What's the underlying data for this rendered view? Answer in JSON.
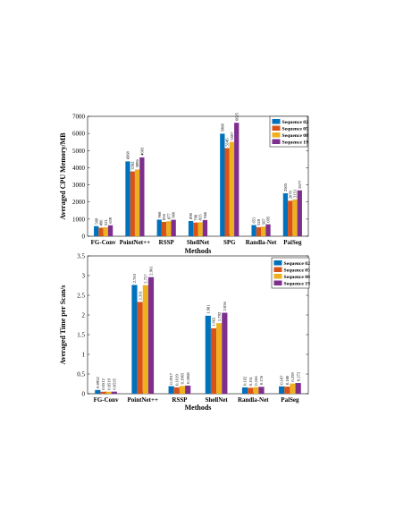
{
  "chart_data": [
    {
      "type": "bar",
      "ylabel": "Averaged CPU Memory/MB",
      "xlabel": "Methods",
      "ylim": [
        0,
        7000
      ],
      "yticks": [
        0,
        1000,
        2000,
        3000,
        4000,
        5000,
        6000,
        7000
      ],
      "legend_position": "top-right",
      "categories": [
        "FG-Conv",
        "PointNet++",
        "RSSP",
        "ShellNet",
        "SPG",
        "Randla-Net",
        "PaiSeg"
      ],
      "series": [
        {
          "name": "Sequence 02",
          "color": "#0072BD",
          "values": [
            589,
            4368,
            968,
            890,
            5988,
            651,
            2505
          ],
          "labels": [
            "589",
            "4368",
            "968",
            "890",
            "5988",
            "651",
            "2505"
          ]
        },
        {
          "name": "Sequence 05",
          "color": "#D95319",
          "values": [
            496,
            3782,
            836,
            798,
            5145,
            528,
            2070
          ],
          "labels": [
            "496",
            "3782",
            "836",
            "798",
            "5145",
            "528",
            "2070"
          ]
        },
        {
          "name": "Sequence 08",
          "color": "#EDB120",
          "values": [
            521,
            3896,
            877,
            815,
            5507,
            567,
            2151
          ],
          "labels": [
            "521",
            "3896",
            "877",
            "815",
            "5507",
            "567",
            "2151"
          ]
        },
        {
          "name": "Sequence 19",
          "color": "#7E2F8E",
          "values": [
            639,
            4603,
            960,
            946,
            6625,
            695,
            2677
          ],
          "labels": [
            "639",
            "4603",
            "960",
            "946",
            "6625",
            "695",
            "2677"
          ]
        }
      ]
    },
    {
      "type": "bar",
      "ylabel": "Averaged Time per Scan/s",
      "xlabel": "Methods",
      "ylim": [
        0,
        3.5
      ],
      "yticks": [
        0,
        0.5,
        1,
        1.5,
        2,
        2.5,
        3,
        3.5
      ],
      "legend_position": "top-right",
      "categories": [
        "FG-Conv",
        "PointNet++",
        "RSSP",
        "ShellNet",
        "Randla-Net",
        "PaiSeg"
      ],
      "series": [
        {
          "name": "Sequence 02",
          "color": "#0072BD",
          "values": [
            0.0952,
            2.763,
            0.1917,
            1.981,
            0.162,
            0.187
          ],
          "labels": [
            "0.0952",
            "2.763",
            "0.1917",
            "1.981",
            "0.162",
            "0.187"
          ]
        },
        {
          "name": "Sequence 05",
          "color": "#D95319",
          "values": [
            0.0512,
            2.331,
            0.1619,
            1.662,
            0.151,
            0.18
          ],
          "labels": [
            "0.0512",
            "2.331",
            "0.1619",
            "1.662",
            "0.151",
            "0.180"
          ]
        },
        {
          "name": "Sequence 08",
          "color": "#EDB120",
          "values": [
            0.0519,
            2.757,
            0.1965,
            1.792,
            0.166,
            0.259
          ],
          "labels": [
            "0.0519",
            "2.757",
            "0.1965",
            "1.792",
            "0.166",
            "0.259"
          ]
        },
        {
          "name": "Sequence 19",
          "color": "#7E2F8E",
          "values": [
            0.0535,
            2.961,
            0.2068,
            2.056,
            0.176,
            0.272
          ],
          "labels": [
            "0.0535",
            "2.961",
            "0.2068",
            "2.056",
            "0.176",
            "0.272"
          ]
        }
      ]
    }
  ]
}
